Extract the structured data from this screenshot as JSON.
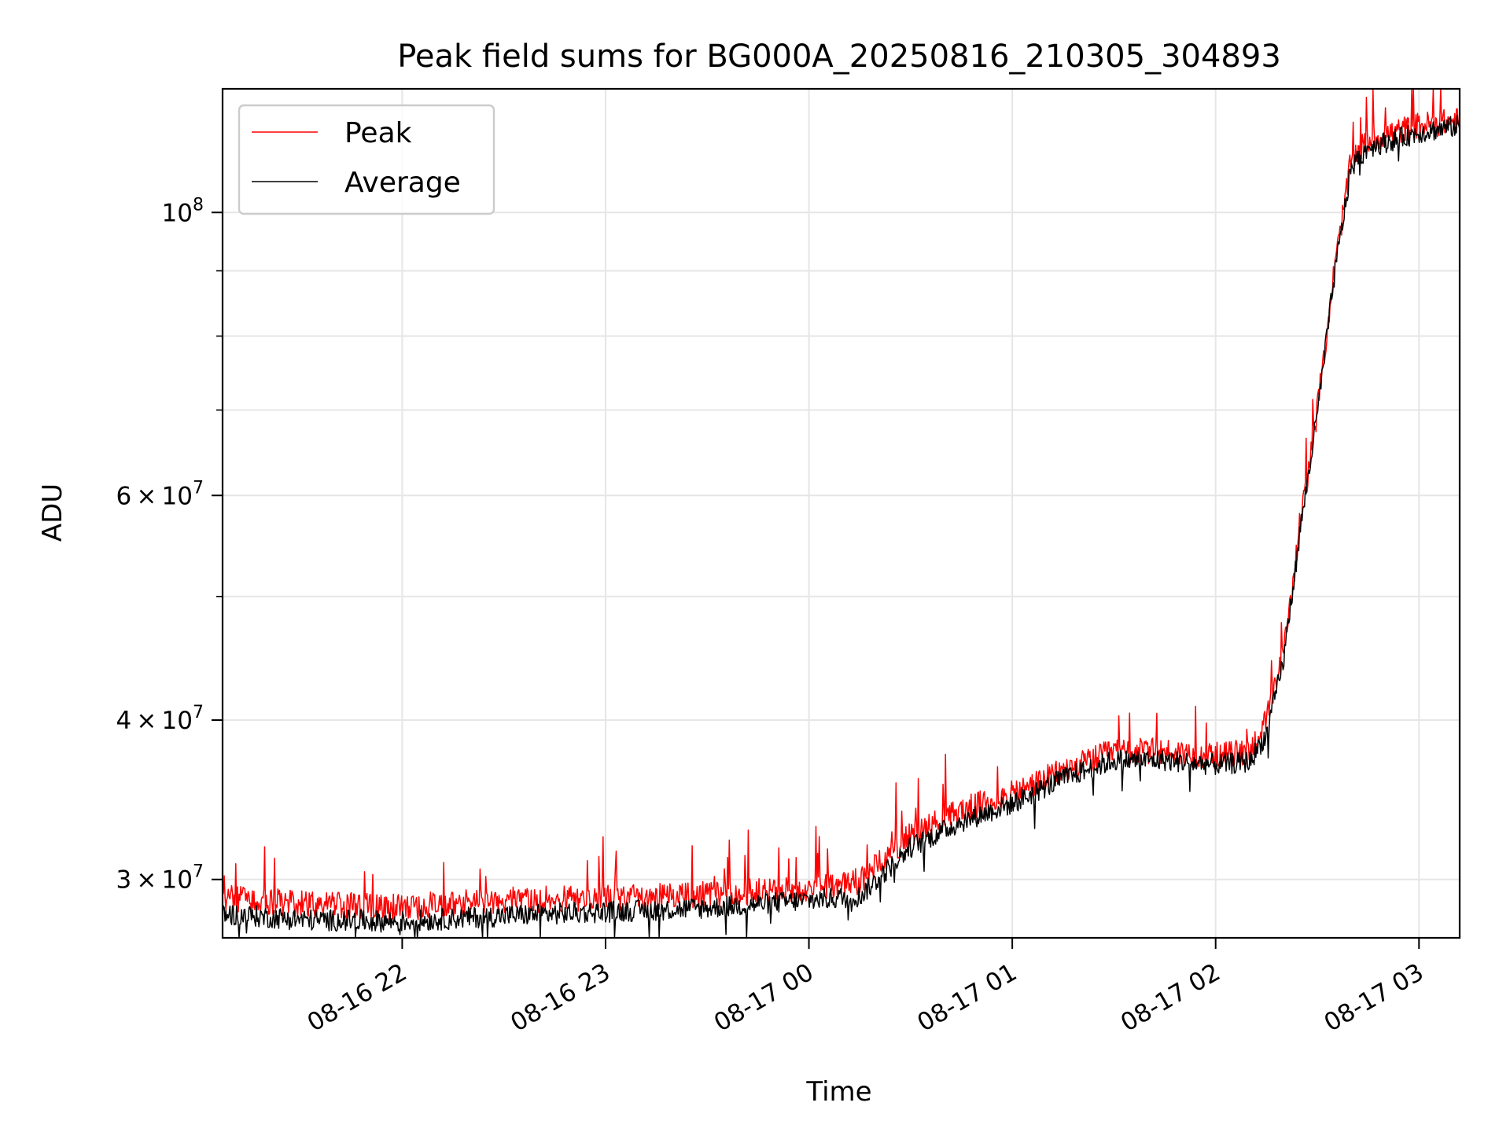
{
  "chart_data": {
    "type": "line",
    "title": "Peak field sums for BG000A_20250816_210305_304893",
    "xlabel": "Time",
    "ylabel": "ADU",
    "y_scale": "log",
    "ylim": [
      27000000,
      125000000
    ],
    "xlim": [
      "2025-08-16 21:07",
      "2025-08-17 03:12"
    ],
    "grid": true,
    "legend_position": "top-left",
    "x_ticks": [
      {
        "value": "2025-08-16 22:00",
        "label": "08-16 22"
      },
      {
        "value": "2025-08-16 23:00",
        "label": "08-16 23"
      },
      {
        "value": "2025-08-17 00:00",
        "label": "08-17 00"
      },
      {
        "value": "2025-08-17 01:00",
        "label": "08-17 01"
      },
      {
        "value": "2025-08-17 02:00",
        "label": "08-17 02"
      },
      {
        "value": "2025-08-17 03:00",
        "label": "08-17 03"
      }
    ],
    "y_ticks": [
      {
        "value": 30000000,
        "base": "3",
        "exp": "7"
      },
      {
        "value": 40000000,
        "base": "4",
        "exp": "7"
      },
      {
        "value": 60000000,
        "base": "6",
        "exp": "7"
      },
      {
        "value": 100000000,
        "base": "",
        "exp": "8"
      }
    ],
    "y_minor_gridlines": [
      50000000,
      70000000,
      80000000,
      90000000
    ],
    "series": [
      {
        "name": "Peak",
        "color": "#ff0000",
        "x": [
          "2025-08-16 21:07",
          "2025-08-16 21:30",
          "2025-08-16 22:00",
          "2025-08-16 22:30",
          "2025-08-16 23:00",
          "2025-08-16 23:30",
          "2025-08-17 00:00",
          "2025-08-17 00:15",
          "2025-08-17 00:30",
          "2025-08-17 00:45",
          "2025-08-17 01:00",
          "2025-08-17 01:15",
          "2025-08-17 01:30",
          "2025-08-17 01:45",
          "2025-08-17 02:00",
          "2025-08-17 02:10",
          "2025-08-17 02:15",
          "2025-08-17 02:20",
          "2025-08-17 02:25",
          "2025-08-17 02:30",
          "2025-08-17 02:35",
          "2025-08-17 02:40",
          "2025-08-17 02:45",
          "2025-08-17 03:00",
          "2025-08-17 03:12"
        ],
        "y": [
          29000000,
          28700000,
          28500000,
          28900000,
          29000000,
          29200000,
          29500000,
          29900000,
          32500000,
          34000000,
          35000000,
          36500000,
          37800000,
          37800000,
          37500000,
          37800000,
          40000000,
          45000000,
          57000000,
          70000000,
          90000000,
          110000000,
          114000000,
          117000000,
          118000000
        ]
      },
      {
        "name": "Average",
        "color": "#000000",
        "x": [
          "2025-08-16 21:07",
          "2025-08-16 21:30",
          "2025-08-16 22:00",
          "2025-08-16 22:30",
          "2025-08-16 23:00",
          "2025-08-16 23:30",
          "2025-08-17 00:00",
          "2025-08-17 00:15",
          "2025-08-17 00:30",
          "2025-08-17 00:45",
          "2025-08-17 01:00",
          "2025-08-17 01:15",
          "2025-08-17 01:30",
          "2025-08-17 01:45",
          "2025-08-17 02:00",
          "2025-08-17 02:10",
          "2025-08-17 02:15",
          "2025-08-17 02:20",
          "2025-08-17 02:25",
          "2025-08-17 02:30",
          "2025-08-17 02:35",
          "2025-08-17 02:40",
          "2025-08-17 02:45",
          "2025-08-17 03:00",
          "2025-08-17 03:12"
        ],
        "y": [
          28200000,
          27900000,
          27800000,
          28100000,
          28300000,
          28500000,
          28900000,
          29100000,
          31800000,
          33300000,
          34400000,
          36000000,
          37200000,
          37200000,
          36900000,
          37100000,
          39000000,
          44500000,
          56500000,
          69500000,
          89000000,
          108500000,
          112500000,
          115500000,
          117000000
        ]
      }
    ]
  }
}
